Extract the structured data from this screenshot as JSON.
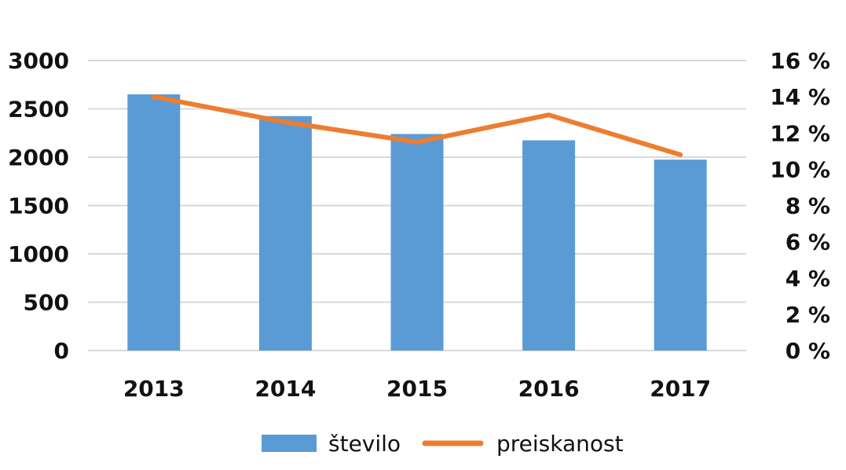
{
  "chart_data": {
    "type": "bar",
    "categories": [
      "2013",
      "2014",
      "2015",
      "2016",
      "2017"
    ],
    "series": [
      {
        "name": "število",
        "type": "bar",
        "axis": "left",
        "color": "#5B9BD5",
        "values": [
          2650,
          2425,
          2240,
          2175,
          1975
        ]
      },
      {
        "name": "preiskanost",
        "type": "line",
        "axis": "right",
        "color": "#ED7D31",
        "values": [
          14.0,
          12.6,
          11.5,
          13.0,
          10.8
        ]
      }
    ],
    "y_left": {
      "min": 0,
      "max": 3000,
      "step": 500,
      "tick_labels": [
        "0",
        "500",
        "1000",
        "1500",
        "2000",
        "2500",
        "3000"
      ]
    },
    "y_right": {
      "min": 0,
      "max": 16,
      "step": 2,
      "tick_labels": [
        "0 %",
        "2 %",
        "4 %",
        "6 %",
        "8 %",
        "10 %",
        "12 %",
        "14 %",
        "16 %"
      ]
    },
    "grid": true,
    "legend_position": "bottom"
  }
}
